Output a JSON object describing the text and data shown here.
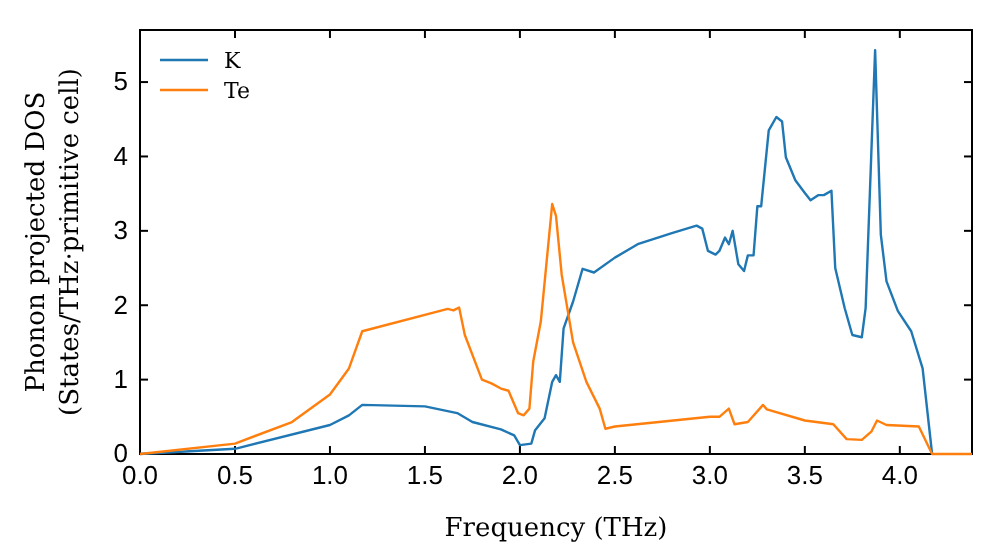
{
  "chart_data": {
    "type": "line",
    "xlabel": "Frequency (THz)",
    "ylabel": "Phonon projected DOS\n(States/THz·primitive cell)",
    "xlim": [
      0,
      4.38
    ],
    "ylim": [
      0,
      5.7
    ],
    "xticks": [
      {
        "value": 0,
        "label": "0.0"
      },
      {
        "value": 0.5,
        "label": "0.5"
      },
      {
        "value": 1,
        "label": "1.0"
      },
      {
        "value": 1.5,
        "label": "1.5"
      },
      {
        "value": 2,
        "label": "2.0"
      },
      {
        "value": 2.5,
        "label": "2.5"
      },
      {
        "value": 3,
        "label": "3.0"
      },
      {
        "value": 3.5,
        "label": "3.5"
      },
      {
        "value": 4,
        "label": "4.0"
      }
    ],
    "yticks": [
      0,
      1,
      2,
      3,
      4,
      5
    ],
    "grid": false,
    "legend": "top left",
    "line_style": "solid",
    "marker": "none",
    "series": [
      {
        "name": "K",
        "color": "#1f77b4",
        "x": [
          0,
          0.5,
          1.0,
          1.1,
          1.17,
          1.5,
          1.67,
          1.75,
          1.9,
          1.97,
          2.0,
          2.06,
          2.08,
          2.13,
          2.17,
          2.19,
          2.21,
          2.23,
          2.28,
          2.33,
          2.39,
          2.5,
          2.62,
          2.8,
          2.93,
          2.96,
          2.99,
          3.03,
          3.05,
          3.08,
          3.1,
          3.12,
          3.15,
          3.18,
          3.2,
          3.23,
          3.25,
          3.27,
          3.31,
          3.35,
          3.38,
          3.4,
          3.45,
          3.5,
          3.53,
          3.57,
          3.6,
          3.64,
          3.66,
          3.71,
          3.75,
          3.8,
          3.82,
          3.85,
          3.87,
          3.9,
          3.93,
          3.99,
          4.06,
          4.12,
          4.17
        ],
        "values": [
          0,
          0.07,
          0.39,
          0.52,
          0.66,
          0.64,
          0.55,
          0.43,
          0.33,
          0.25,
          0.12,
          0.14,
          0.32,
          0.48,
          0.97,
          1.06,
          0.97,
          1.69,
          2.05,
          2.49,
          2.44,
          2.64,
          2.82,
          2.97,
          3.07,
          3.03,
          2.73,
          2.68,
          2.73,
          2.91,
          2.82,
          3.0,
          2.55,
          2.46,
          2.67,
          2.67,
          3.33,
          3.33,
          4.35,
          4.53,
          4.47,
          3.99,
          3.68,
          3.51,
          3.41,
          3.48,
          3.48,
          3.54,
          2.5,
          1.96,
          1.6,
          1.57,
          1.96,
          4.04,
          5.43,
          2.95,
          2.32,
          1.92,
          1.65,
          1.15,
          0
        ]
      },
      {
        "name": "Te",
        "color": "#ff7f0e",
        "x": [
          0,
          0.5,
          0.8,
          1.0,
          1.1,
          1.17,
          1.62,
          1.65,
          1.68,
          1.71,
          1.8,
          1.85,
          1.9,
          1.94,
          1.99,
          2.02,
          2.05,
          2.07,
          2.11,
          2.17,
          2.19,
          2.22,
          2.28,
          2.35,
          2.42,
          2.45,
          2.5,
          3.0,
          3.05,
          3.1,
          3.13,
          3.2,
          3.28,
          3.3,
          3.5,
          3.65,
          3.72,
          3.8,
          3.85,
          3.88,
          3.93,
          4.1,
          4.17,
          4.38
        ],
        "values": [
          0,
          0.14,
          0.43,
          0.8,
          1.15,
          1.65,
          1.95,
          1.93,
          1.97,
          1.6,
          1.0,
          0.95,
          0.88,
          0.85,
          0.55,
          0.52,
          0.61,
          1.24,
          1.78,
          3.36,
          3.2,
          2.41,
          1.5,
          0.97,
          0.61,
          0.34,
          0.37,
          0.5,
          0.5,
          0.61,
          0.4,
          0.43,
          0.66,
          0.6,
          0.45,
          0.4,
          0.2,
          0.19,
          0.3,
          0.45,
          0.39,
          0.37,
          0,
          0
        ]
      }
    ]
  }
}
